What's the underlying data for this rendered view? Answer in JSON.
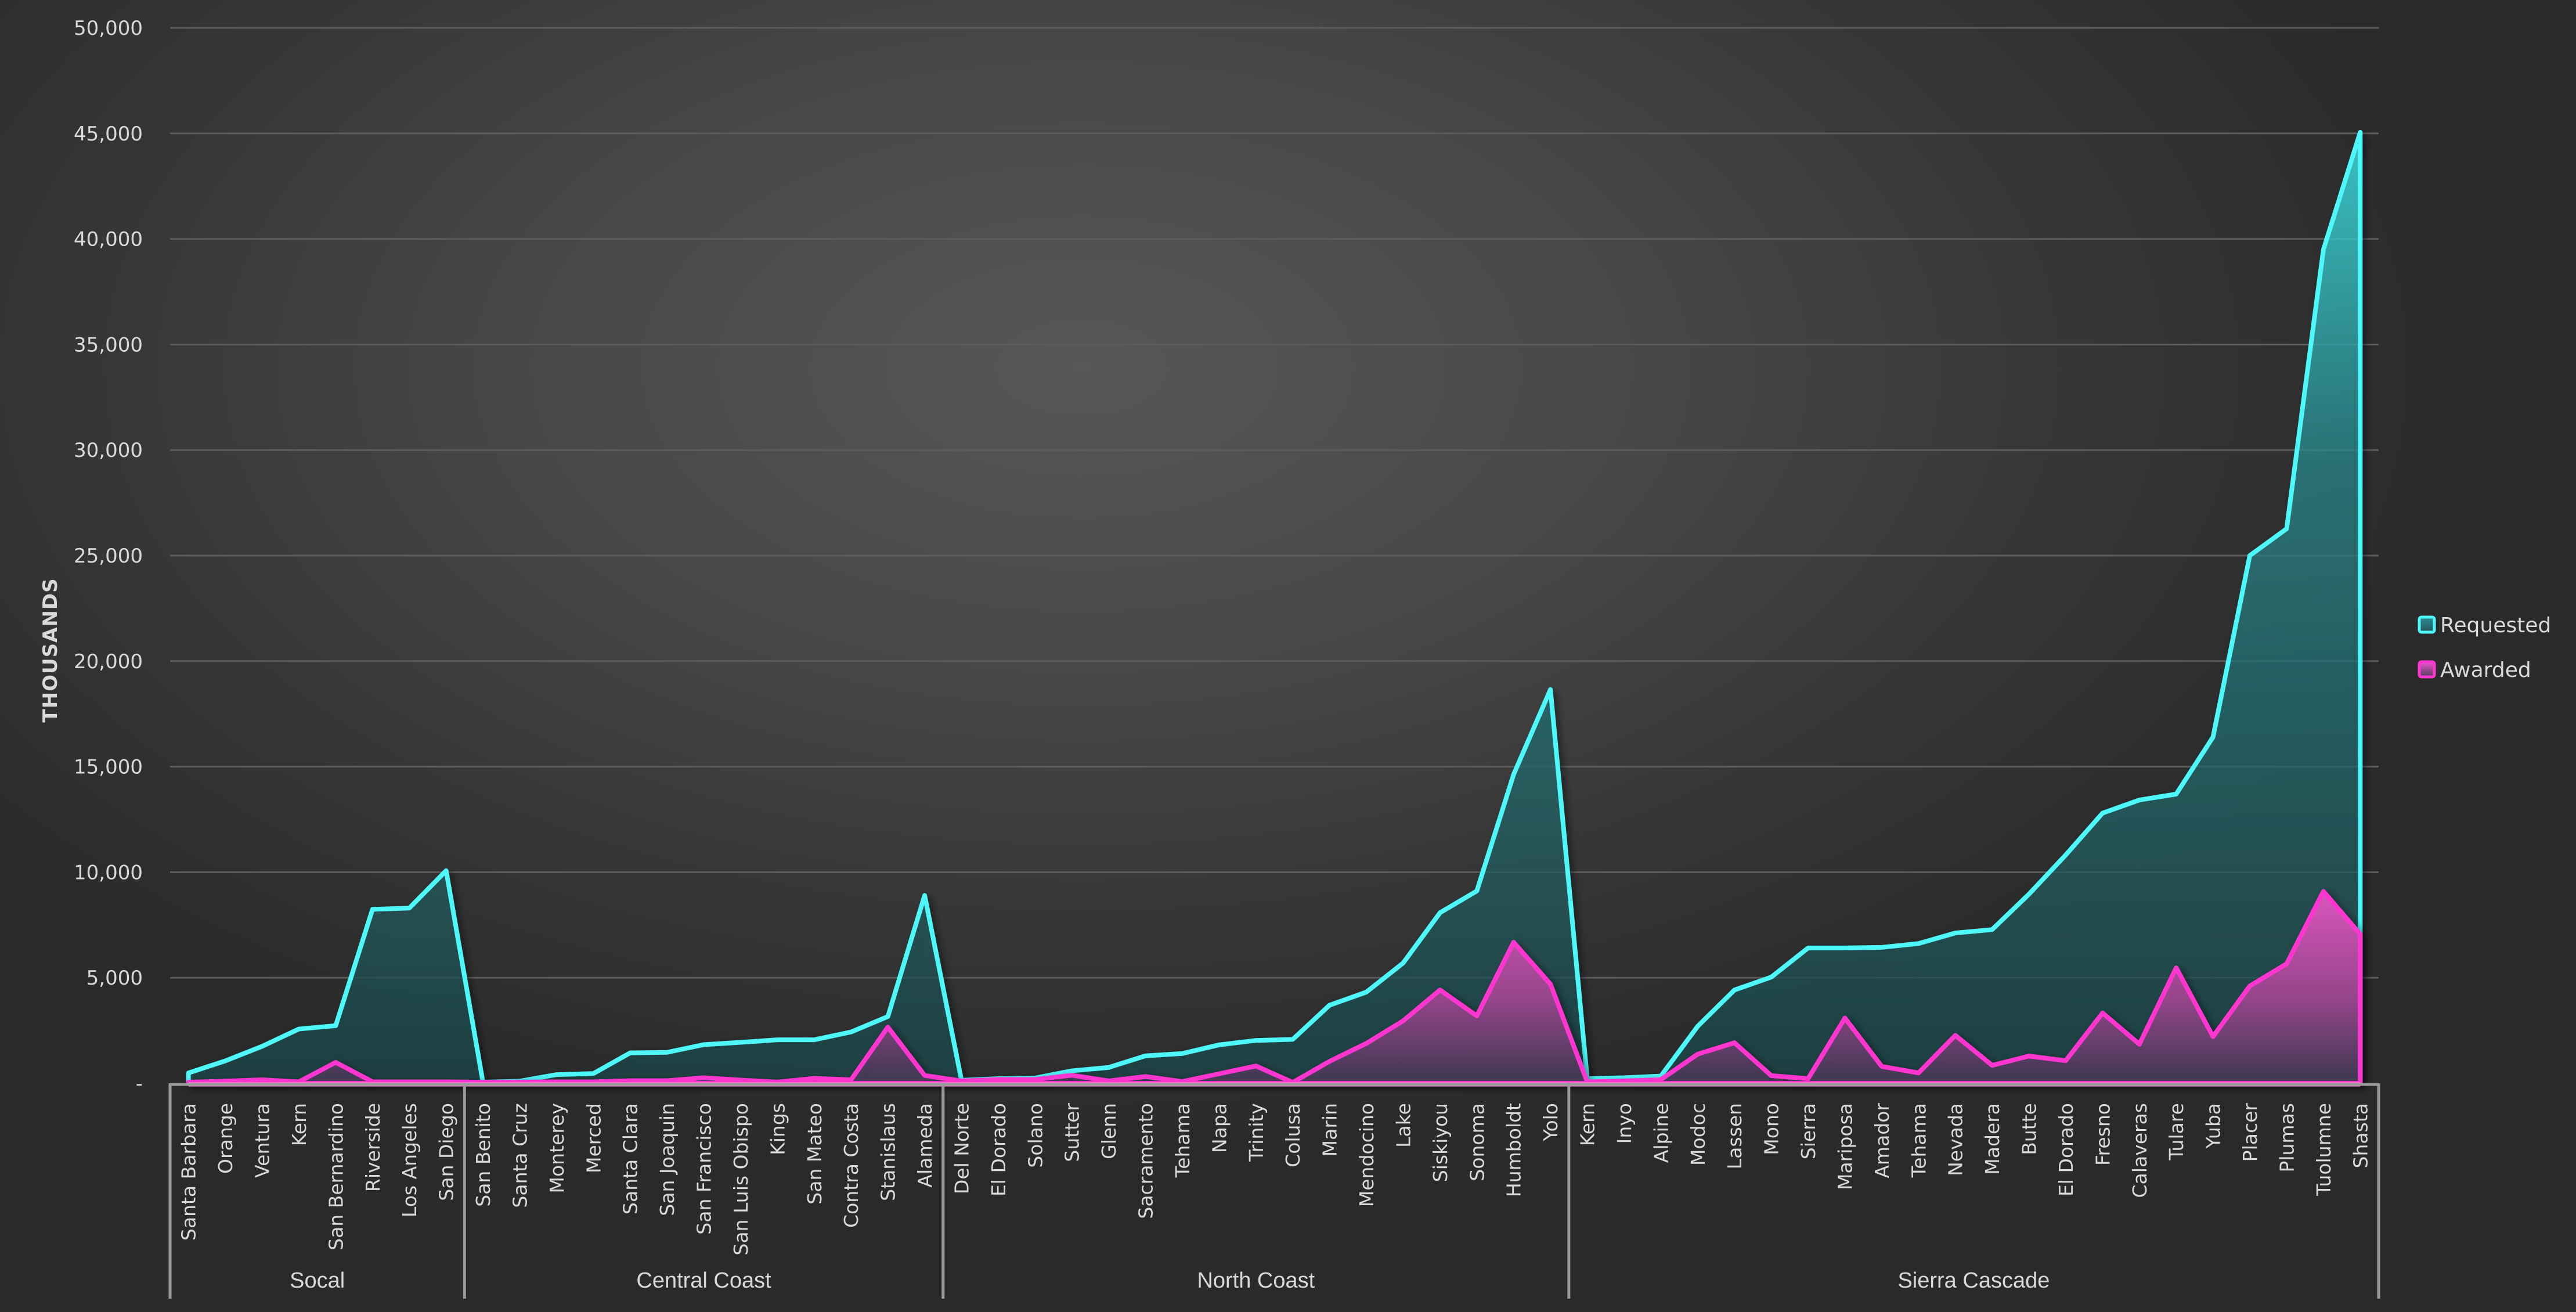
{
  "chart_data": {
    "type": "area",
    "title": "",
    "xlabel": "",
    "ylabel": "THOUSANDS",
    "ylim": [
      0,
      50000
    ],
    "yticks": [
      0,
      5000,
      10000,
      15000,
      20000,
      25000,
      30000,
      35000,
      40000,
      45000,
      50000
    ],
    "ytick_labels": [
      "-",
      "5,000",
      "10,000",
      "15,000",
      "20,000",
      "25,000",
      "30,000",
      "35,000",
      "40,000",
      "45,000",
      "50,000"
    ],
    "grid": true,
    "legend_position": "right",
    "groups": [
      {
        "name": "Socal",
        "start": 0,
        "count": 8
      },
      {
        "name": "Central Coast",
        "start": 8,
        "count": 13
      },
      {
        "name": "North Coast",
        "start": 21,
        "count": 17
      },
      {
        "name": "Sierra Cascade",
        "start": 38,
        "count": 22
      }
    ],
    "categories": [
      "Santa Barbara",
      "Orange",
      "Ventura",
      "Kern",
      "San Bernardino",
      "Riverside",
      "Los Angeles",
      "San Diego",
      "San Benito",
      "Santa Cruz",
      "Monterey",
      "Merced",
      "Santa Clara",
      "San Joaquin",
      "San Francisco",
      "San Luis Obispo",
      "Kings",
      "San Mateo",
      "Contra Costa",
      "Stanislaus",
      "Alameda",
      "Del Norte",
      "El Dorado",
      "Solano",
      "Sutter",
      "Glenn",
      "Sacramento",
      "Tehama",
      "Napa",
      "Trinity",
      "Colusa",
      "Marin",
      "Mendocino",
      "Lake",
      "Siskiyou",
      "Sonoma",
      "Humboldt",
      "Yolo",
      "Kern",
      "Inyo",
      "Alpine",
      "Modoc",
      "Lassen",
      "Mono",
      "Sierra",
      "Mariposa",
      "Amador",
      "Tehama",
      "Nevada",
      "Madera",
      "Butte",
      "El Dorado",
      "Fresno",
      "Calaveras",
      "Tulare",
      "Yuba",
      "Placer",
      "Plumas",
      "Tuolumne",
      "Shasta"
    ],
    "series": [
      {
        "name": "Requested",
        "color": "#4df7fa",
        "values": [
          490,
          1060,
          1750,
          2570,
          2730,
          8240,
          8300,
          10070,
          50,
          100,
          410,
          460,
          1440,
          1465,
          1830,
          1940,
          2060,
          2060,
          2430,
          3160,
          8900,
          140,
          220,
          250,
          590,
          750,
          1300,
          1410,
          1820,
          2030,
          2080,
          3700,
          4320,
          5700,
          8080,
          9110,
          14630,
          18650,
          220,
          260,
          340,
          2700,
          4420,
          5030,
          6410,
          6410,
          6440,
          6620,
          7120,
          7280,
          8960,
          10820,
          12800,
          13420,
          13700,
          16400,
          25000,
          26270,
          39500,
          45050
        ]
      },
      {
        "name": "Awarded",
        "color": "#ff35d0",
        "values": [
          50,
          100,
          165,
          70,
          990,
          70,
          70,
          70,
          50,
          60,
          70,
          70,
          120,
          120,
          260,
          150,
          60,
          230,
          165,
          2660,
          370,
          110,
          180,
          180,
          380,
          110,
          320,
          80,
          450,
          820,
          40,
          1040,
          1890,
          2960,
          4420,
          3190,
          6680,
          4700,
          70,
          110,
          170,
          1380,
          1920,
          360,
          220,
          3090,
          800,
          490,
          2270,
          850,
          1290,
          1070,
          3330,
          1850,
          5470,
          2210,
          4610,
          5660,
          9090,
          7060
        ]
      }
    ]
  },
  "legend": {
    "items": [
      {
        "label": "Requested",
        "color": "#4df7fa",
        "fill_top": "#2a8f93",
        "fill_bottom": "#245558"
      },
      {
        "label": "Awarded",
        "color": "#ff35d0",
        "fill_top": "#f355d0",
        "fill_bottom": "#4e3d5c"
      }
    ]
  },
  "axes": {
    "y_title": "THOUSANDS"
  }
}
